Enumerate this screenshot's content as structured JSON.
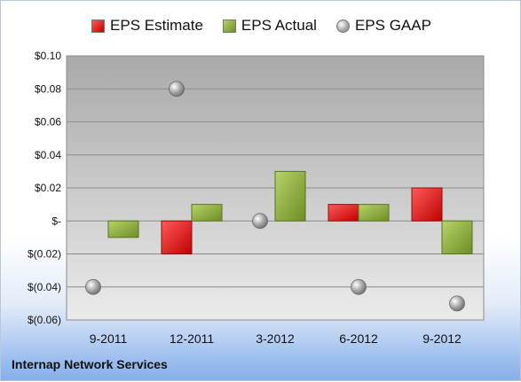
{
  "chart_data": {
    "type": "bar",
    "categories": [
      "9-2011",
      "12-2011",
      "3-2012",
      "6-2012",
      "9-2012"
    ],
    "series": [
      {
        "name": "EPS Estimate",
        "values": [
          null,
          -0.02,
          null,
          0.01,
          0.02
        ],
        "color": "#d11b1b",
        "kind": "bar"
      },
      {
        "name": "EPS Actual",
        "values": [
          -0.01,
          0.01,
          0.03,
          0.01,
          -0.02
        ],
        "color": "#86a83c",
        "kind": "bar"
      },
      {
        "name": "EPS GAAP",
        "values": [
          -0.04,
          0.08,
          0.0,
          -0.04,
          -0.05
        ],
        "color": "#b0b0b0",
        "kind": "marker"
      }
    ],
    "ylim": [
      -0.06,
      0.1
    ],
    "yticks": [
      0.1,
      0.08,
      0.06,
      0.04,
      0.02,
      0,
      -0.02,
      -0.04,
      -0.06
    ],
    "ytick_labels": [
      "$0.10",
      "$0.08",
      "$0.06",
      "$0.04",
      "$0.02",
      "$-",
      "$(0.02)",
      "$(0.04)",
      "$(0.06)"
    ],
    "grid": true,
    "legend_position": "top"
  },
  "legend": {
    "estimate": "EPS Estimate",
    "actual": "EPS Actual",
    "gaap": "EPS GAAP"
  },
  "company_name": "Internap Network Services"
}
